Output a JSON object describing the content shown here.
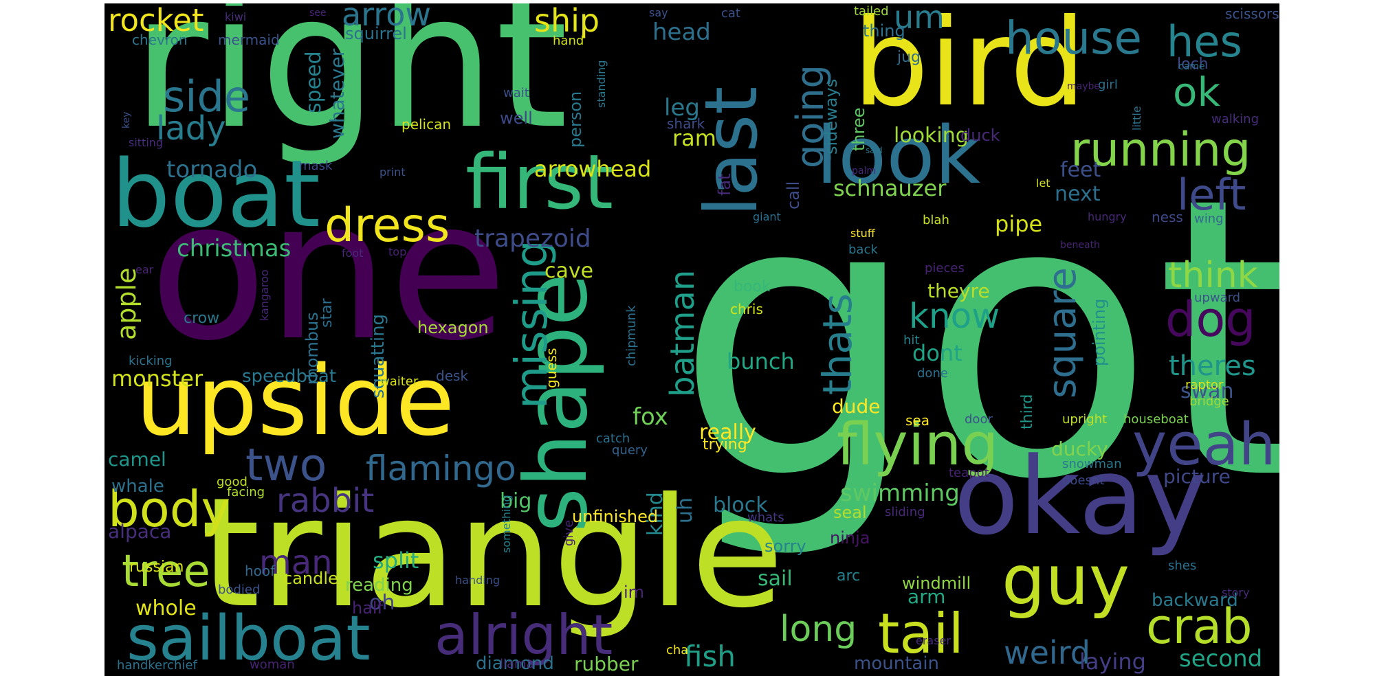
{
  "colors": {
    "background": "#000000",
    "page": "#ffffff"
  },
  "words": [
    {
      "text": "got",
      "color": "#44bf70"
    },
    {
      "text": "right",
      "color": "#48c16e"
    },
    {
      "text": "one",
      "color": "#440154"
    },
    {
      "text": "triangle",
      "color": "#bddf26"
    },
    {
      "text": "bird",
      "color": "#e8e419"
    },
    {
      "text": "okay",
      "color": "#433e85"
    },
    {
      "text": "upside",
      "color": "#fde725"
    },
    {
      "text": "boat",
      "color": "#21918c"
    },
    {
      "text": "first",
      "color": "#35b779"
    },
    {
      "text": "look",
      "color": "#2c728e"
    },
    {
      "text": "shape",
      "color": "#2db27d"
    },
    {
      "text": "last",
      "color": "#2c728e"
    },
    {
      "text": "sailboat",
      "color": "#26828e"
    },
    {
      "text": "alright",
      "color": "#472c7a"
    },
    {
      "text": "guy",
      "color": "#c2df23"
    },
    {
      "text": "flying",
      "color": "#7ad151"
    },
    {
      "text": "yeah",
      "color": "#414487"
    },
    {
      "text": "tail",
      "color": "#c8e020"
    },
    {
      "text": "crab",
      "color": "#b5de2b"
    },
    {
      "text": "body",
      "color": "#d0e11c"
    },
    {
      "text": "running",
      "color": "#84d44b"
    },
    {
      "text": "dress",
      "color": "#f1e51d"
    },
    {
      "text": "missing",
      "color": "#1e9c89"
    },
    {
      "text": "two",
      "color": "#3b528b"
    },
    {
      "text": "flamingo",
      "color": "#31688e"
    },
    {
      "text": "tree",
      "color": "#a8db34"
    },
    {
      "text": "house",
      "color": "#2a788e"
    },
    {
      "text": "hes",
      "color": "#25848e"
    },
    {
      "text": "ok",
      "color": "#37b878"
    },
    {
      "text": "side",
      "color": "#2a768e"
    },
    {
      "text": "left",
      "color": "#3e4a89"
    },
    {
      "text": "dog",
      "color": "#46085c"
    },
    {
      "text": "square",
      "color": "#2e6e8e"
    },
    {
      "text": "know",
      "color": "#1fa088"
    },
    {
      "text": "thats",
      "color": "#277f8e"
    },
    {
      "text": "batman",
      "color": "#1f9e89"
    },
    {
      "text": "going",
      "color": "#2e6f8e"
    },
    {
      "text": "think",
      "color": "#8fd744"
    },
    {
      "text": "long",
      "color": "#6ccd5a"
    },
    {
      "text": "weird",
      "color": "#31688e"
    },
    {
      "text": "rabbit",
      "color": "#463480"
    },
    {
      "text": "man",
      "color": "#482979"
    },
    {
      "text": "ship",
      "color": "#e5e419"
    },
    {
      "text": "rocket",
      "color": "#f1e51d"
    },
    {
      "text": "arrow",
      "color": "#2b758e"
    },
    {
      "text": "um",
      "color": "#287c8e"
    },
    {
      "text": "lady",
      "color": "#287d8e"
    },
    {
      "text": "fish",
      "color": "#1f9f88"
    },
    {
      "text": "swimming",
      "color": "#5ec962"
    },
    {
      "text": "theres",
      "color": "#1f958b"
    },
    {
      "text": "second",
      "color": "#20a486"
    },
    {
      "text": "tornado",
      "color": "#2c718e"
    },
    {
      "text": "christmas",
      "color": "#3bbb75"
    },
    {
      "text": "trapezoid",
      "color": "#3e4c8a"
    },
    {
      "text": "apple",
      "color": "#b2dd2d"
    },
    {
      "text": "arrowhead",
      "color": "#d8e219"
    },
    {
      "text": "pipe",
      "color": "#d5e21a"
    },
    {
      "text": "fox",
      "color": "#70cf57"
    },
    {
      "text": "head",
      "color": "#2d708e"
    },
    {
      "text": "leg",
      "color": "#2a788e"
    },
    {
      "text": "next",
      "color": "#2d708e"
    },
    {
      "text": "feet",
      "color": "#3c508b"
    },
    {
      "text": "looking",
      "color": "#a0da39"
    },
    {
      "text": "schnauzer",
      "color": "#7fd34e"
    },
    {
      "text": "speed",
      "color": "#26828e"
    },
    {
      "text": "whatever",
      "color": "#2a788e"
    },
    {
      "text": "ram",
      "color": "#c5e021"
    },
    {
      "text": "monster",
      "color": "#d2e21b"
    },
    {
      "text": "cave",
      "color": "#c2df23"
    },
    {
      "text": "split",
      "color": "#25ab82"
    },
    {
      "text": "sail",
      "color": "#37b878"
    },
    {
      "text": "whole",
      "color": "#e2e418"
    },
    {
      "text": "block",
      "color": "#2a788e"
    },
    {
      "text": "really",
      "color": "#fde725"
    },
    {
      "text": "dude",
      "color": "#fde725"
    },
    {
      "text": "bunch",
      "color": "#22a785"
    },
    {
      "text": "dont",
      "color": "#20a386"
    },
    {
      "text": "ducky",
      "color": "#81d34d"
    },
    {
      "text": "picture",
      "color": "#3f4889"
    },
    {
      "text": "big",
      "color": "#52c569"
    },
    {
      "text": "kind",
      "color": "#23898e"
    },
    {
      "text": "uh",
      "color": "#2d718e"
    },
    {
      "text": "swan",
      "color": "#3b528b"
    },
    {
      "text": "oh",
      "color": "#414487"
    },
    {
      "text": "camel",
      "color": "#1f968b"
    },
    {
      "text": "whale",
      "color": "#2c728e"
    },
    {
      "text": "alpaca",
      "color": "#472f7d"
    },
    {
      "text": "arm",
      "color": "#22a884"
    },
    {
      "text": "diamond",
      "color": "#2c728e"
    },
    {
      "text": "rubber",
      "color": "#7ad151"
    },
    {
      "text": "mountain",
      "color": "#3b528b"
    },
    {
      "text": "laying",
      "color": "#433e85"
    },
    {
      "text": "backward",
      "color": "#297a8e"
    },
    {
      "text": "reading",
      "color": "#7fd34e"
    },
    {
      "text": "half",
      "color": "#482374"
    },
    {
      "text": "theyre",
      "color": "#b8de29"
    },
    {
      "text": "speedboat",
      "color": "#2a788e"
    },
    {
      "text": "unfinished",
      "color": "#fde725"
    },
    {
      "text": "squatting",
      "color": "#2a768e"
    },
    {
      "text": "rhombus",
      "color": "#2c728e"
    },
    {
      "text": "hexagon",
      "color": "#a5db36"
    },
    {
      "text": "pointing",
      "color": "#21918c"
    },
    {
      "text": "three",
      "color": "#5ec962"
    },
    {
      "text": "sideways",
      "color": "#287d8e"
    },
    {
      "text": "thing",
      "color": "#2c728e"
    },
    {
      "text": "call",
      "color": "#3e4c8a"
    },
    {
      "text": "fat",
      "color": "#472a7a"
    },
    {
      "text": "duck",
      "color": "#482878"
    },
    {
      "text": "person",
      "color": "#2a788e"
    },
    {
      "text": "well",
      "color": "#3e4989"
    },
    {
      "text": "pelican",
      "color": "#d2e21b"
    },
    {
      "text": "shark",
      "color": "#3e4c8a"
    },
    {
      "text": "mermaid",
      "color": "#3b528b"
    },
    {
      "text": "chevron",
      "color": "#2a778e"
    },
    {
      "text": "squirrel",
      "color": "#2c738e"
    },
    {
      "text": "hand",
      "color": "#d0e11c"
    },
    {
      "text": "jug",
      "color": "#2f6c8e"
    },
    {
      "text": "loch",
      "color": "#3e4989"
    },
    {
      "text": "seal",
      "color": "#b2dd2d"
    },
    {
      "text": "ninja",
      "color": "#471365"
    },
    {
      "text": "windmill",
      "color": "#90d743"
    },
    {
      "text": "sorry",
      "color": "#25848e"
    },
    {
      "text": "candle",
      "color": "#c8e020"
    },
    {
      "text": "crow",
      "color": "#2a788e"
    },
    {
      "text": "star",
      "color": "#2e6e8e"
    },
    {
      "text": "book",
      "color": "#35b779"
    },
    {
      "text": "chris",
      "color": "#d2e21b"
    },
    {
      "text": "chipmunk",
      "color": "#2c728e"
    },
    {
      "text": "guess",
      "color": "#f1e51d"
    },
    {
      "text": "kangaroo",
      "color": "#482878"
    },
    {
      "text": "waiter",
      "color": "#d8e219"
    },
    {
      "text": "desk",
      "color": "#3a538b"
    },
    {
      "text": "kicking",
      "color": "#2c728e"
    },
    {
      "text": "good",
      "color": "#c2df23"
    },
    {
      "text": "facing",
      "color": "#b0dd2f"
    },
    {
      "text": "russian",
      "color": "#d8e219"
    },
    {
      "text": "hoof",
      "color": "#31688e"
    },
    {
      "text": "bodied",
      "color": "#3b528b"
    },
    {
      "text": "handkerchief",
      "color": "#2c728e"
    },
    {
      "text": "woman",
      "color": "#482374"
    },
    {
      "text": "llama",
      "color": "#472d7b"
    },
    {
      "text": "cha",
      "color": "#f1e51d"
    },
    {
      "text": "query",
      "color": "#33638d"
    },
    {
      "text": "catch",
      "color": "#2c728e"
    },
    {
      "text": "trying",
      "color": "#fde725"
    },
    {
      "text": "handing",
      "color": "#3b528b"
    },
    {
      "text": "something",
      "color": "#25848e"
    },
    {
      "text": "give",
      "color": "#482374"
    },
    {
      "text": "whats",
      "color": "#443a83"
    },
    {
      "text": "sliding",
      "color": "#482878"
    },
    {
      "text": "im",
      "color": "#482374"
    },
    {
      "text": "arc",
      "color": "#26828e"
    },
    {
      "text": "sea",
      "color": "#fde725"
    },
    {
      "text": "door",
      "color": "#3b528b"
    },
    {
      "text": "third",
      "color": "#1f968b"
    },
    {
      "text": "upright",
      "color": "#c2df23"
    },
    {
      "text": "houseboat",
      "color": "#7ad151"
    },
    {
      "text": "teapot",
      "color": "#482374"
    },
    {
      "text": "snowman",
      "color": "#2a788e"
    },
    {
      "text": "doesnt",
      "color": "#3e4989"
    },
    {
      "text": "shes",
      "color": "#2c728e"
    },
    {
      "text": "story",
      "color": "#472d7b"
    },
    {
      "text": "eraser",
      "color": "#472d7b"
    },
    {
      "text": "raptor",
      "color": "#d8e219"
    },
    {
      "text": "bridge",
      "color": "#a0da39"
    },
    {
      "text": "upward",
      "color": "#3b528b"
    },
    {
      "text": "pieces",
      "color": "#482374"
    },
    {
      "text": "hit",
      "color": "#25848e"
    },
    {
      "text": "done",
      "color": "#2c728e"
    },
    {
      "text": "ness",
      "color": "#3e4989"
    },
    {
      "text": "wing",
      "color": "#31688e"
    },
    {
      "text": "hungry",
      "color": "#482878"
    },
    {
      "text": "beneath",
      "color": "#482374"
    },
    {
      "text": "let",
      "color": "#d2e21b"
    },
    {
      "text": "blah",
      "color": "#c8e020"
    },
    {
      "text": "stuff",
      "color": "#fde725"
    },
    {
      "text": "back",
      "color": "#2a788e"
    },
    {
      "text": "palm",
      "color": "#482878"
    },
    {
      "text": "giant",
      "color": "#2c728e"
    },
    {
      "text": "said",
      "color": "#2a788e"
    },
    {
      "text": "girl",
      "color": "#2c728e"
    },
    {
      "text": "little",
      "color": "#2c728e"
    },
    {
      "text": "maybe",
      "color": "#482374"
    },
    {
      "text": "walking",
      "color": "#472d7b"
    },
    {
      "text": "came",
      "color": "#2c728e"
    },
    {
      "text": "scissors",
      "color": "#3b528b"
    },
    {
      "text": "tailed",
      "color": "#a0da39"
    },
    {
      "text": "cat",
      "color": "#3b528b"
    },
    {
      "text": "say",
      "color": "#3b528b"
    },
    {
      "text": "see",
      "color": "#482374"
    },
    {
      "text": "kiwi",
      "color": "#472d7b"
    },
    {
      "text": "wait",
      "color": "#3b528b"
    },
    {
      "text": "standing",
      "color": "#2a788e"
    },
    {
      "text": "key",
      "color": "#3b528b"
    },
    {
      "text": "sitting",
      "color": "#472d7b"
    },
    {
      "text": "mask",
      "color": "#3e4989"
    },
    {
      "text": "print",
      "color": "#3b528b"
    },
    {
      "text": "ear",
      "color": "#482374"
    },
    {
      "text": "foot",
      "color": "#482878"
    },
    {
      "text": "top",
      "color": "#482374"
    }
  ]
}
